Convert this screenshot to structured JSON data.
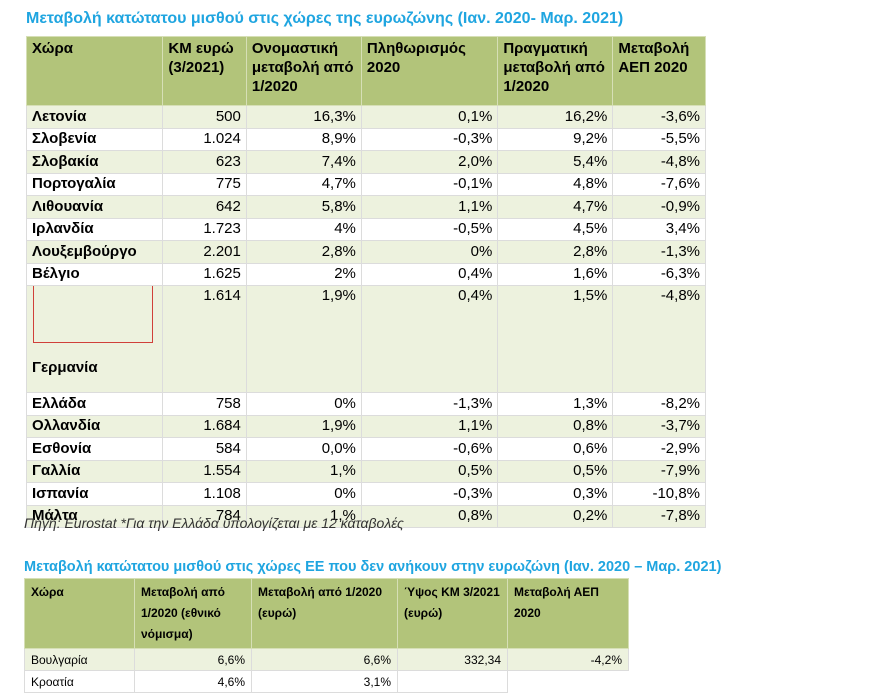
{
  "table1": {
    "title": "Μεταβολή κατώτατου μισθού στις χώρες της ευρωζώνης (Ιαν. 2020- Μαρ. 2021)",
    "headers": [
      "Χώρα",
      "ΚΜ ευρώ (3/2021)",
      "Ονομαστική μεταβολή από 1/2020",
      "Πληθωρισμός 2020",
      "Πραγματική μεταβολή από 1/2020",
      "Μεταβολή ΑΕΠ 2020"
    ],
    "rows": [
      [
        "Λετονία",
        "500",
        "16,3%",
        "0,1%",
        "16,2%",
        "-3,6%"
      ],
      [
        "Σλοβενία",
        "1.024",
        "8,9%",
        "-0,3%",
        "9,2%",
        "-5,5%"
      ],
      [
        "Σλοβακία",
        "623",
        "7,4%",
        "2,0%",
        "5,4%",
        "-4,8%"
      ],
      [
        "Πορτογαλία",
        "775",
        "4,7%",
        "-0,1%",
        "4,8%",
        "-7,6%"
      ],
      [
        "Λιθουανία",
        "642",
        "5,8%",
        "1,1%",
        "4,7%",
        "-0,9%"
      ],
      [
        "Ιρλανδία",
        "1.723",
        "4%",
        "-0,5%",
        "4,5%",
        "3,4%"
      ],
      [
        "Λουξεμβούργο",
        "2.201",
        "2,8%",
        "0%",
        "2,8%",
        "-1,3%"
      ],
      [
        "Βέλγιο",
        "1.625",
        "2%",
        "0,4%",
        "1,6%",
        "-6,3%"
      ],
      [
        "Γερμανία",
        "1.614",
        "1,9%",
        "0,4%",
        "1,5%",
        "-4,8%"
      ],
      [
        "Ελλάδα",
        "758",
        "0%",
        "-1,3%",
        "1,3%",
        "-8,2%"
      ],
      [
        "Ολλανδία",
        "1.684",
        "1,9%",
        "1,1%",
        "0,8%",
        "-3,7%"
      ],
      [
        "Εσθονία",
        "584",
        "0,0%",
        "-0,6%",
        "0,6%",
        "-2,9%"
      ],
      [
        "Γαλλία",
        "1.554",
        "1,%",
        "0,5%",
        "0,5%",
        "-7,9%"
      ],
      [
        "Ισπανία",
        "1.108",
        "0%",
        "-0,3%",
        "0,3%",
        "-10,8%"
      ],
      [
        "Μάλτα",
        "784",
        "1,%",
        "0,8%",
        "0,2%",
        "-7,8%"
      ]
    ],
    "source": "Πηγή: Eurostat *Για την Ελλάδα υπολογίζεται με 12 καταβολές"
  },
  "table2": {
    "title": "Μεταβολή κατώτατου μισθού στις χώρες ΕΕ που δεν ανήκουν  στην ευρωζώνη (Ιαν. 2020 – Μαρ. 2021)",
    "headers": [
      "Χώρα",
      "Μεταβολή από 1/2020 (εθνικό νόμισμα)",
      "Μεταβολή από 1/2020 (ευρώ)",
      "Ύψος ΚΜ 3/2021 (ευρώ)",
      "Μεταβολή ΑΕΠ 2020"
    ],
    "rows": [
      [
        "Βουλγαρία",
        "6,6%",
        "6,6%",
        "332,34",
        "-4,2%"
      ],
      [
        "Κροατία",
        "4,6%",
        "3,1%",
        "",
        ""
      ]
    ]
  }
}
